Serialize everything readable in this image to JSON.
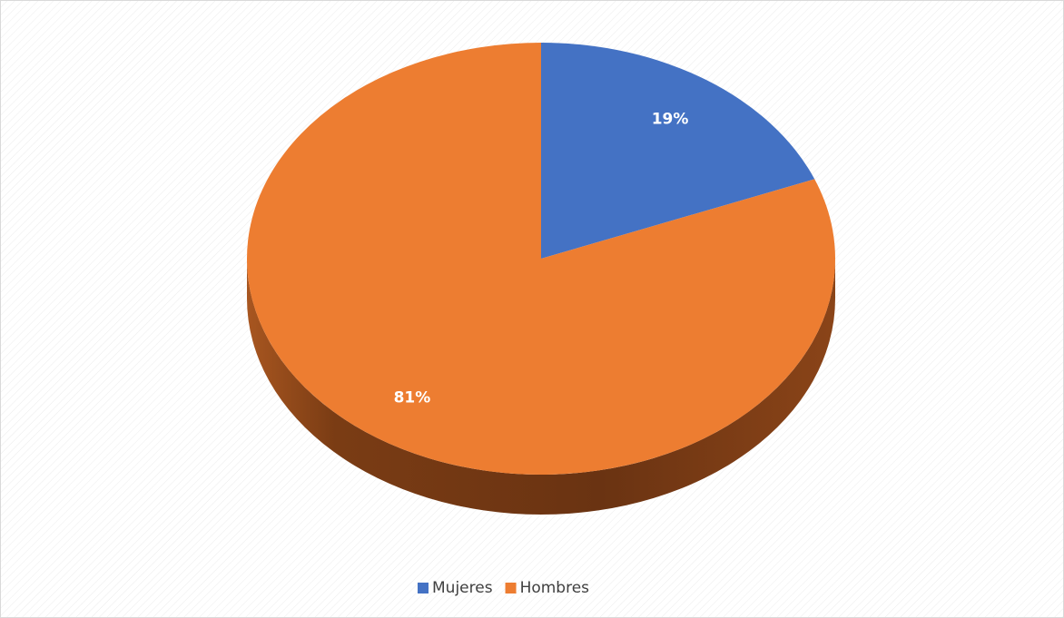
{
  "chart_data": {
    "type": "pie",
    "categories": [
      "Mujeres",
      "Hombres"
    ],
    "values": [
      19,
      81
    ],
    "value_labels": [
      "19%",
      "81%"
    ],
    "colors": [
      "#4472c4",
      "#ed7d31"
    ],
    "legend": "bottom"
  }
}
